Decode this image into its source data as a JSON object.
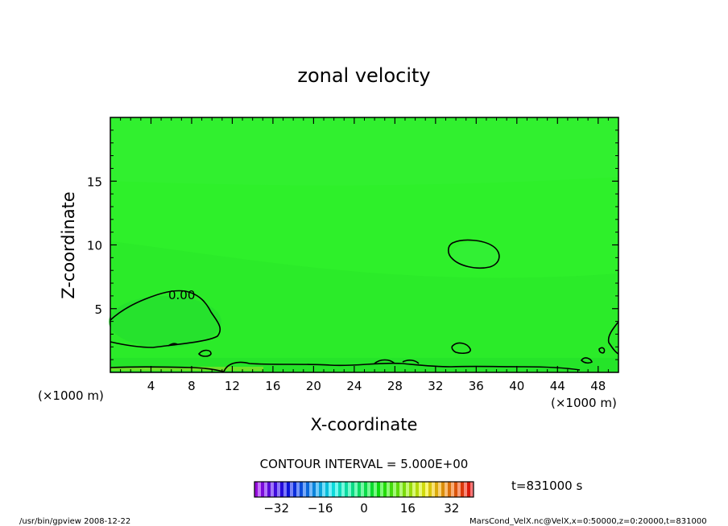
{
  "chart_data": {
    "type": "heatmap",
    "title": "zonal velocity",
    "xlabel": "X-coordinate",
    "ylabel": "Z-coordinate",
    "x_unit": "(×1000 m)",
    "y_unit": "(×1000 m)",
    "xlim": [
      0,
      50
    ],
    "ylim": [
      0,
      20
    ],
    "x_ticks": [
      "4",
      "8",
      "12",
      "16",
      "20",
      "24",
      "28",
      "32",
      "36",
      "40",
      "44",
      "48"
    ],
    "y_ticks": [
      "5",
      "10",
      "15"
    ],
    "contour_label": "0.00",
    "contour_interval_text": "CONTOUR INTERVAL = 5.000E+00",
    "time_text": "t=831000 s",
    "colorbar": {
      "range": [
        -40,
        40
      ],
      "tick_labels": [
        "−32",
        "−16",
        "0",
        "16",
        "32"
      ]
    },
    "footer_left": "/usr/bin/gpview   2008-12-22",
    "footer_right": "MarsCond_VelX.nc@VelX,x=0:50000,z=0:20000,t=831000",
    "colors": {
      "field": "#2ef02a",
      "field_dark": "#29e62a",
      "field_light": "#3ff03a",
      "background": "#ffffff"
    }
  }
}
